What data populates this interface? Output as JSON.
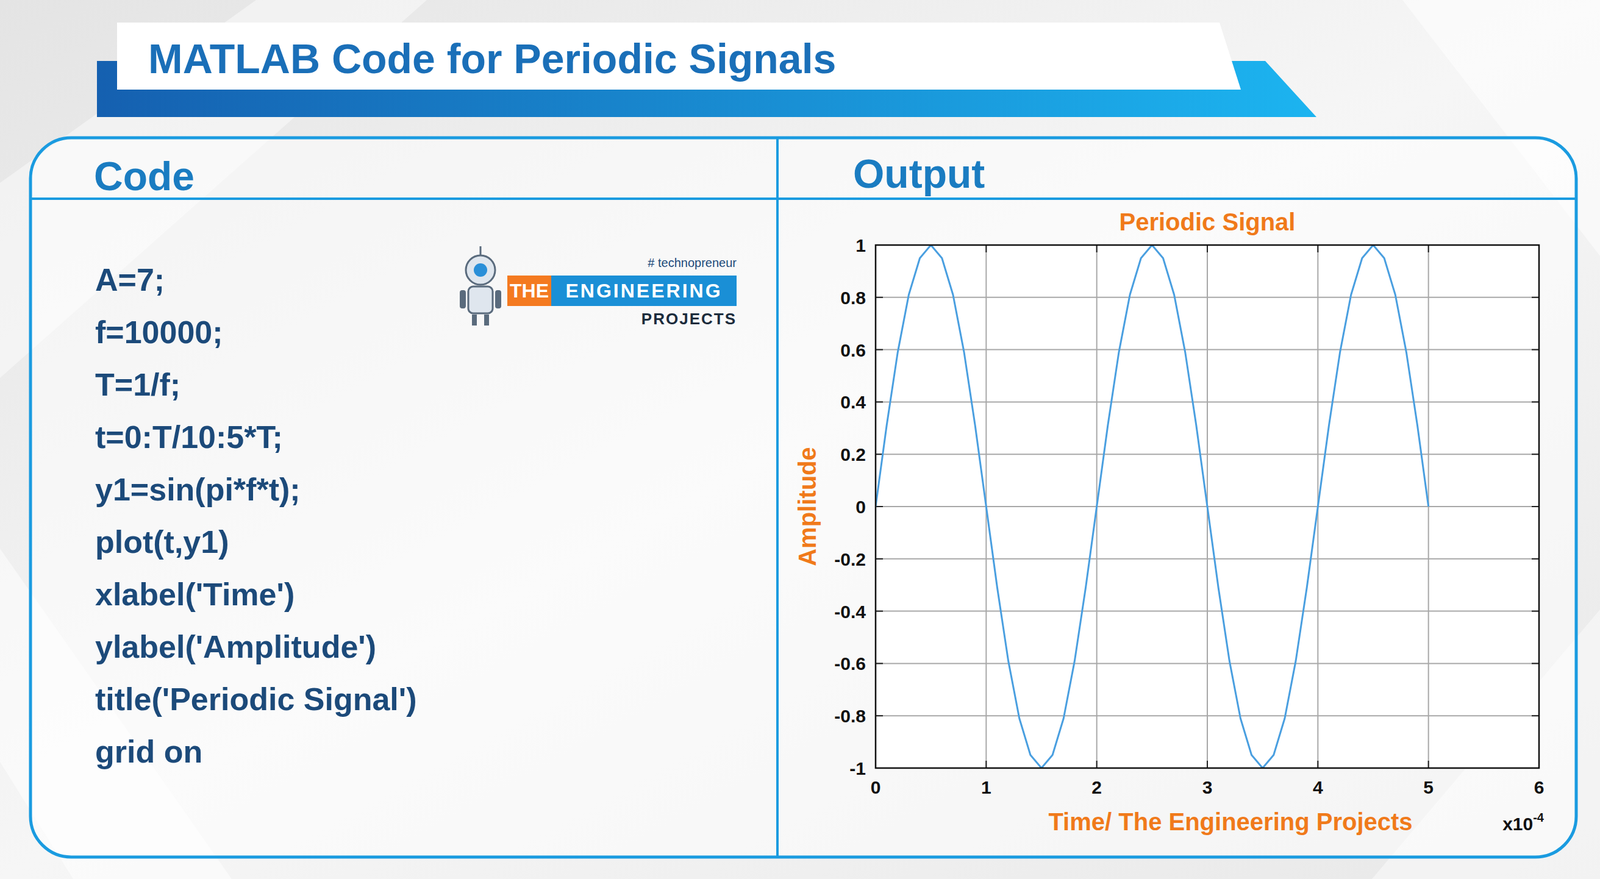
{
  "header": {
    "title": "MATLAB Code for Periodic Signals"
  },
  "panels": {
    "code_heading": "Code",
    "output_heading": "Output"
  },
  "code": [
    "A=7;",
    "f=10000;",
    "T=1/f;",
    "t=0:T/10:5*T;",
    "y1=sin(pi*f*t);",
    "plot(t,y1)",
    "xlabel('Time')",
    "ylabel('Amplitude')",
    "title('Periodic Signal')",
    "grid on"
  ],
  "logo": {
    "tagline": "# technopreneur",
    "brand_1": "THE",
    "brand_2": "ENGINEERING",
    "brand_3": "PROJECTS"
  },
  "chart_data": {
    "type": "line",
    "title": "Periodic Signal",
    "x_label": "Time/ The Engineering Projects",
    "y_label": "Amplitude",
    "x": [
      0,
      1e-05,
      2e-05,
      3e-05,
      4e-05,
      5e-05,
      6e-05,
      7e-05,
      8e-05,
      9e-05,
      0.0001,
      0.00011,
      0.00012,
      0.00013,
      0.00014,
      0.00015,
      0.00016,
      0.00017,
      0.00018,
      0.00019,
      0.0002,
      0.00021,
      0.00022,
      0.00023,
      0.00024,
      0.00025,
      0.00026,
      0.00027,
      0.00028,
      0.00029,
      0.0003,
      0.00031,
      0.00032,
      0.00033,
      0.00034,
      0.00035,
      0.00036,
      0.00037,
      0.00038,
      0.00039,
      0.0004,
      0.00041,
      0.00042,
      0.00043,
      0.00044,
      0.00045,
      0.00046,
      0.00047,
      0.00048,
      0.00049,
      0.0005
    ],
    "values": [
      0,
      0.31,
      0.59,
      0.81,
      0.95,
      1,
      0.95,
      0.81,
      0.59,
      0.31,
      0,
      -0.31,
      -0.59,
      -0.81,
      -0.95,
      -1,
      -0.95,
      -0.81,
      -0.59,
      -0.31,
      0,
      0.31,
      0.59,
      0.81,
      0.95,
      1,
      0.95,
      0.81,
      0.59,
      0.31,
      0,
      -0.31,
      -0.59,
      -0.81,
      -0.95,
      -1,
      -0.95,
      -0.81,
      -0.59,
      -0.31,
      0,
      0.31,
      0.59,
      0.81,
      0.95,
      1,
      0.95,
      0.81,
      0.59,
      0.31,
      0
    ],
    "color": "#4a9fe0",
    "xlim": [
      0,
      0.0006
    ],
    "xticks": [
      0,
      {
        "value": 0.0001,
        "label": "1"
      },
      {
        "value": 0.0002,
        "label": "2"
      },
      {
        "value": 0.0003,
        "label": "3"
      },
      {
        "value": 0.0004,
        "label": "4"
      },
      {
        "value": 0.0005,
        "label": "5"
      },
      {
        "value": 0.0006,
        "label": "6"
      }
    ],
    "ylim": [
      -1,
      1
    ],
    "yticks": [
      -1,
      -0.8,
      -0.6,
      -0.4,
      -0.2,
      0,
      0.2,
      0.4,
      0.6,
      0.8,
      1
    ],
    "grid": true,
    "annotations": [
      {
        "text": "x10",
        "superscript": "-4"
      }
    ]
  }
}
